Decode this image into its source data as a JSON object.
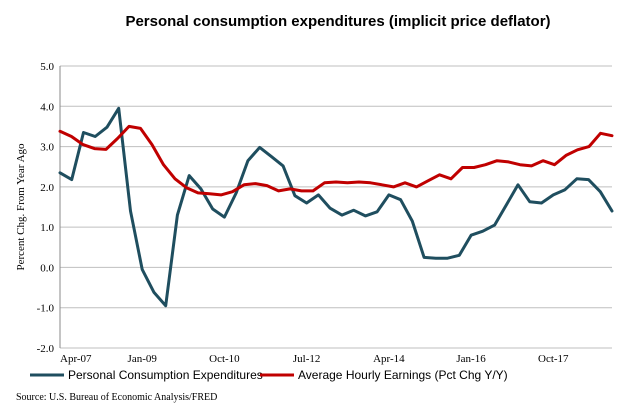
{
  "chart_data": {
    "type": "line",
    "title": "Personal consumption expenditures (implicit price deflator)",
    "ylabel": "Percent Chg. From Year Ago",
    "xlabel": "",
    "ylim": [
      -2.0,
      5.0
    ],
    "y_ticks": [
      "-2.0",
      "-1.0",
      "0.0",
      "1.0",
      "2.0",
      "3.0",
      "4.0",
      "5.0"
    ],
    "x_ticks": [
      "Apr-07",
      "Jan-09",
      "Oct-10",
      "Jul-12",
      "Apr-14",
      "Jan-16",
      "Oct-17"
    ],
    "grid": "horizontal",
    "legend_position": "bottom",
    "source": "Source: U.S. Bureau of Economic Analysis/FRED",
    "series": [
      {
        "name": "Personal Consumption Expenditures",
        "color": "#1f4e5f",
        "values": [
          2.35,
          2.18,
          3.35,
          3.25,
          3.48,
          3.95,
          1.4,
          -0.05,
          -0.62,
          -0.95,
          1.3,
          2.28,
          1.95,
          1.45,
          1.25,
          1.85,
          2.65,
          2.98,
          2.75,
          2.52,
          1.78,
          1.6,
          1.8,
          1.47,
          1.3,
          1.42,
          1.28,
          1.38,
          1.8,
          1.68,
          1.15,
          0.25,
          0.23,
          0.23,
          0.3,
          0.8,
          0.9,
          1.05,
          1.55,
          2.05,
          1.63,
          1.6,
          1.8,
          1.93,
          2.2,
          2.18,
          1.88,
          1.4
        ]
      },
      {
        "name": "Average Hourly Earnings (Pct Chg Y/Y)",
        "color": "#c00000",
        "values": [
          3.38,
          3.25,
          3.05,
          2.95,
          2.93,
          3.2,
          3.5,
          3.45,
          3.05,
          2.55,
          2.2,
          1.98,
          1.85,
          1.83,
          1.8,
          1.88,
          2.05,
          2.08,
          2.03,
          1.9,
          1.95,
          1.9,
          1.9,
          2.1,
          2.12,
          2.1,
          2.12,
          2.1,
          2.05,
          2.0,
          2.1,
          2.0,
          2.15,
          2.3,
          2.2,
          2.48,
          2.48,
          2.55,
          2.65,
          2.62,
          2.55,
          2.52,
          2.65,
          2.55,
          2.78,
          2.92,
          3.0,
          3.33,
          3.27
        ]
      }
    ]
  }
}
